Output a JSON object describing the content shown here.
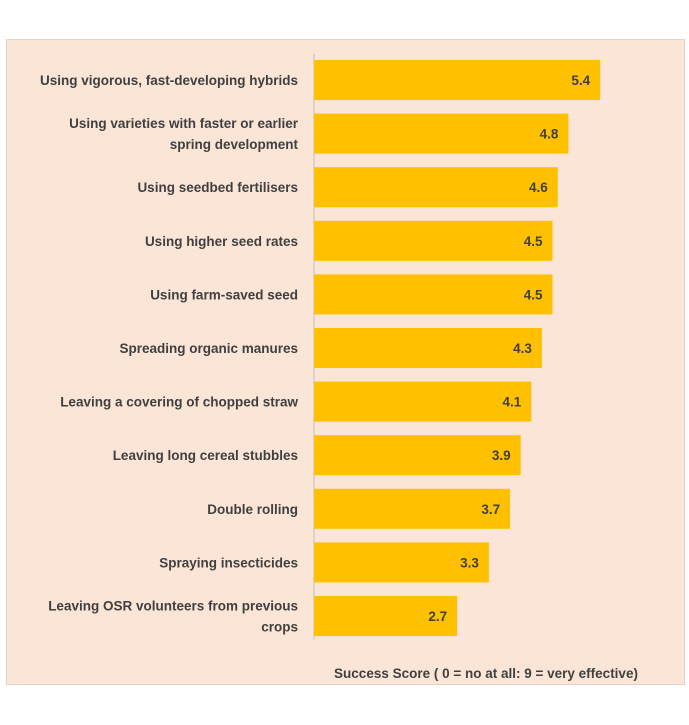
{
  "chart_data": {
    "type": "bar",
    "orientation": "horizontal",
    "categories": [
      "Using vigorous, fast-developing hybrids",
      "Using varieties with faster or earlier spring development",
      "Using seedbed fertilisers",
      "Using higher seed rates",
      "Using farm-saved seed",
      "Spreading organic manures",
      "Leaving a covering of chopped straw",
      "Leaving long cereal stubbles",
      "Double rolling",
      "Spraying insecticides",
      "Leaving OSR volunteers from previous crops"
    ],
    "values": [
      5.4,
      4.8,
      4.6,
      4.5,
      4.5,
      4.3,
      4.1,
      3.9,
      3.7,
      3.3,
      2.7
    ],
    "value_labels": [
      "5.4",
      "4.8",
      "4.6",
      "4.5",
      "4.5",
      "4.3",
      "4.1",
      "3.9",
      "3.7",
      "3.3",
      "2.7"
    ],
    "title": "",
    "xlabel": "Success Score ( 0 = no at all: 9 = very effective)",
    "ylabel": "",
    "xlim": [
      0,
      9
    ],
    "grid": false,
    "legend": "none",
    "colors": {
      "bar": "#ffc000",
      "background": "#fbe5d6",
      "axis": "#bfbfbf",
      "text": "#404040"
    }
  }
}
